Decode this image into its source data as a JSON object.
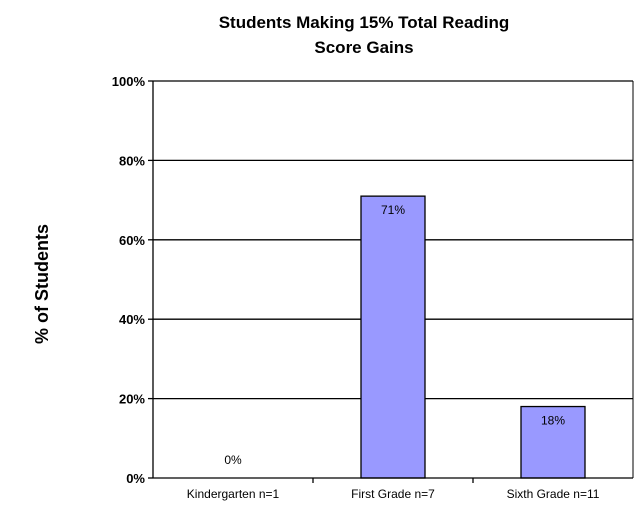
{
  "chart_data": {
    "type": "bar",
    "title": [
      "Students Making 15% Total Reading",
      "Score Gains"
    ],
    "ylabel": "% of Students",
    "xlabel": "",
    "categories": [
      "Kindergarten n=1",
      "First Grade n=7",
      "Sixth Grade n=11"
    ],
    "values": [
      0,
      71,
      18
    ],
    "data_labels": [
      "0%",
      "71%",
      "18%"
    ],
    "ylim": [
      0,
      100
    ],
    "yticks": [
      0,
      20,
      40,
      60,
      80,
      100
    ],
    "ytick_labels": [
      "0%",
      "20%",
      "40%",
      "60%",
      "80%",
      "100%"
    ],
    "grid": true,
    "legend": "none",
    "bar_color": "#9999ff",
    "bar_edge_color": "#000000"
  }
}
